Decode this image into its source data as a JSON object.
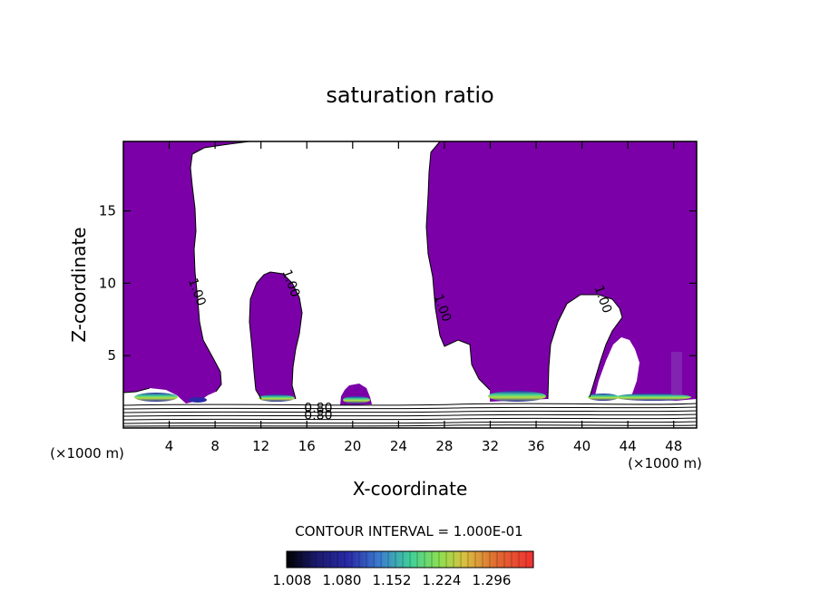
{
  "chart_data": {
    "type": "contour",
    "title": "saturation ratio",
    "xlabel": "X-coordinate",
    "ylabel": "Z-coordinate",
    "x_unit_label": "(×1000 m)",
    "y_unit_label": "(×1000 m)",
    "xlim": [
      0,
      50
    ],
    "ylim": [
      0,
      19.8
    ],
    "x_ticks": [
      4,
      8,
      12,
      16,
      20,
      24,
      28,
      32,
      36,
      40,
      44,
      48
    ],
    "y_ticks": [
      5,
      10,
      15
    ],
    "x_tick_labels": [
      "4",
      "8",
      "12",
      "16",
      "20",
      "24",
      "28",
      "32",
      "36",
      "40",
      "44",
      "48"
    ],
    "y_tick_labels": [
      "5",
      "10",
      "15"
    ],
    "contour_labels": [
      {
        "text": "1.00",
        "x": 6.1,
        "z": 9.3
      },
      {
        "text": "1.00",
        "x": 14.3,
        "z": 9.9
      },
      {
        "text": "1.00",
        "x": 27.5,
        "z": 8.2
      },
      {
        "text": "1.00",
        "x": 41.5,
        "z": 8.8
      },
      {
        "text": "0.80",
        "x": 17.0,
        "z": 1.1
      },
      {
        "text": "0.80",
        "x": 17.0,
        "z": 0.6
      }
    ],
    "contour_interval_text": "CONTOUR INTERVAL = 1.000E-01",
    "colorbar": {
      "tick_labels": [
        "1.008",
        "1.080",
        "1.152",
        "1.224",
        "1.296"
      ],
      "colors": [
        "#000000",
        "#1a1a6e",
        "#2a2aa8",
        "#3b5fd0",
        "#4aa0d8",
        "#3fcf9a",
        "#6de05a",
        "#b8e040",
        "#d9c040",
        "#e08a30",
        "#e04a2a",
        "#f03030"
      ]
    },
    "supersaturated_fill_color": "#7b00a8",
    "moist_core_colors": [
      "#2a2aa8",
      "#3fcf9a",
      "#6de05a",
      "#b8e040"
    ]
  }
}
